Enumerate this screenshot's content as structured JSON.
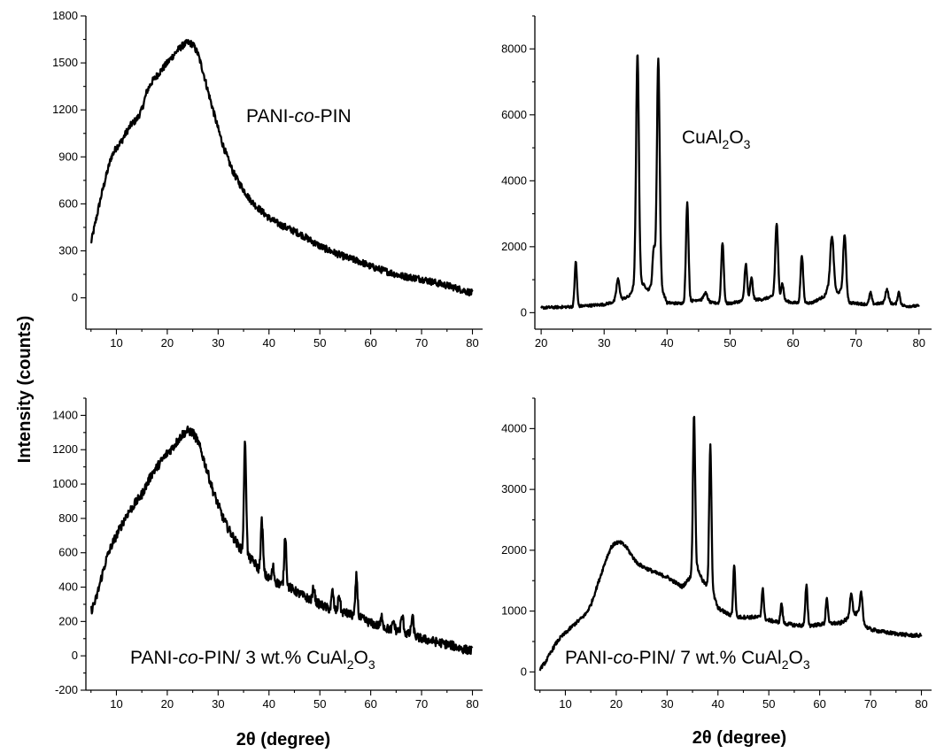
{
  "figure": {
    "ylabel": "Intensity (counts)",
    "xlabel_left": "2θ (degree)",
    "xlabel_right": "2θ (degree)"
  },
  "chart_data": [
    {
      "type": "line",
      "label": {
        "parts": [
          {
            "t": "PANI-"
          },
          {
            "t": "co",
            "style": "italic"
          },
          {
            "t": "-PIN"
          }
        ]
      },
      "xlim": [
        4,
        82
      ],
      "ylim": [
        -200,
        1800
      ],
      "xticks": [
        10,
        20,
        30,
        40,
        50,
        60,
        70,
        80
      ],
      "yticks": [
        0,
        300,
        600,
        900,
        1200,
        1500,
        1800
      ],
      "noise": 22,
      "points": [
        [
          5,
          350
        ],
        [
          6,
          500
        ],
        [
          7,
          650
        ],
        [
          8,
          780
        ],
        [
          9,
          900
        ],
        [
          10,
          960
        ],
        [
          11,
          1000
        ],
        [
          12,
          1060
        ],
        [
          13,
          1110
        ],
        [
          14,
          1140
        ],
        [
          15,
          1200
        ],
        [
          16,
          1320
        ],
        [
          17,
          1380
        ],
        [
          18,
          1420
        ],
        [
          19,
          1460
        ],
        [
          20,
          1500
        ],
        [
          21,
          1540
        ],
        [
          22,
          1580
        ],
        [
          23,
          1610
        ],
        [
          24,
          1630
        ],
        [
          25,
          1620
        ],
        [
          26,
          1560
        ],
        [
          27,
          1450
        ],
        [
          28,
          1320
        ],
        [
          29,
          1200
        ],
        [
          30,
          1080
        ],
        [
          31,
          970
        ],
        [
          32,
          880
        ],
        [
          33,
          800
        ],
        [
          34,
          740
        ],
        [
          35,
          690
        ],
        [
          36,
          640
        ],
        [
          37,
          600
        ],
        [
          38,
          570
        ],
        [
          40,
          510
        ],
        [
          42,
          470
        ],
        [
          44,
          440
        ],
        [
          46,
          410
        ],
        [
          48,
          370
        ],
        [
          50,
          330
        ],
        [
          52,
          300
        ],
        [
          55,
          260
        ],
        [
          58,
          230
        ],
        [
          60,
          200
        ],
        [
          63,
          170
        ],
        [
          66,
          140
        ],
        [
          70,
          120
        ],
        [
          73,
          95
        ],
        [
          76,
          70
        ],
        [
          78,
          50
        ],
        [
          80,
          30
        ]
      ],
      "peaks": []
    },
    {
      "type": "line",
      "label": {
        "parts": [
          {
            "t": "CuAl"
          },
          {
            "t": "2",
            "style": "sub"
          },
          {
            "t": "O"
          },
          {
            "t": "3",
            "style": "sub"
          }
        ]
      },
      "xlim": [
        19,
        82
      ],
      "ylim": [
        -500,
        9000
      ],
      "xticks": [
        20,
        30,
        40,
        50,
        60,
        70,
        80
      ],
      "yticks": [
        0,
        2000,
        4000,
        6000,
        8000
      ],
      "noise": 40,
      "points": [
        [
          20,
          150
        ],
        [
          25,
          180
        ],
        [
          30,
          250
        ],
        [
          32,
          350
        ],
        [
          34,
          500
        ],
        [
          35,
          900
        ],
        [
          36,
          900
        ],
        [
          37,
          700
        ],
        [
          38,
          900
        ],
        [
          39,
          800
        ],
        [
          40,
          300
        ],
        [
          42,
          280
        ],
        [
          45,
          400
        ],
        [
          47,
          300
        ],
        [
          50,
          280
        ],
        [
          53,
          400
        ],
        [
          55,
          400
        ],
        [
          57,
          500
        ],
        [
          58,
          400
        ],
        [
          60,
          300
        ],
        [
          63,
          300
        ],
        [
          65,
          500
        ],
        [
          66,
          1000
        ],
        [
          67,
          600
        ],
        [
          68,
          700
        ],
        [
          69,
          300
        ],
        [
          72,
          250
        ],
        [
          75,
          300
        ],
        [
          78,
          200
        ],
        [
          80,
          200
        ]
      ],
      "peaks": [
        [
          25.5,
          1350,
          0.18
        ],
        [
          32.2,
          650,
          0.25
        ],
        [
          35.3,
          7000,
          0.22
        ],
        [
          37.9,
          1100,
          0.2
        ],
        [
          38.6,
          6850,
          0.22
        ],
        [
          43.2,
          3000,
          0.2
        ],
        [
          46.1,
          250,
          0.3
        ],
        [
          48.8,
          1850,
          0.2
        ],
        [
          52.5,
          1100,
          0.2
        ],
        [
          53.4,
          650,
          0.2
        ],
        [
          57.4,
          2250,
          0.22
        ],
        [
          58.3,
          500,
          0.2
        ],
        [
          61.4,
          1450,
          0.2
        ],
        [
          66.2,
          1400,
          0.25
        ],
        [
          68.2,
          1750,
          0.22
        ],
        [
          72.3,
          350,
          0.2
        ],
        [
          74.9,
          400,
          0.25
        ],
        [
          76.8,
          380,
          0.2
        ]
      ]
    },
    {
      "type": "line",
      "label": {
        "parts": [
          {
            "t": "PANI-"
          },
          {
            "t": "co",
            "style": "italic"
          },
          {
            "t": "-PIN/ 3 wt.% CuAl"
          },
          {
            "t": "2",
            "style": "sub"
          },
          {
            "t": "O"
          },
          {
            "t": "3",
            "style": "sub"
          }
        ]
      },
      "xlim": [
        4,
        82
      ],
      "ylim": [
        -200,
        1500
      ],
      "xticks": [
        10,
        20,
        30,
        40,
        50,
        60,
        70,
        80
      ],
      "yticks": [
        -200,
        0,
        200,
        400,
        600,
        800,
        1000,
        1200,
        1400
      ],
      "noise": 26,
      "points": [
        [
          5,
          260
        ],
        [
          6,
          330
        ],
        [
          7,
          450
        ],
        [
          8,
          560
        ],
        [
          9,
          640
        ],
        [
          10,
          700
        ],
        [
          11,
          760
        ],
        [
          12,
          820
        ],
        [
          13,
          860
        ],
        [
          14,
          900
        ],
        [
          15,
          940
        ],
        [
          16,
          1000
        ],
        [
          17,
          1060
        ],
        [
          18,
          1100
        ],
        [
          19,
          1140
        ],
        [
          20,
          1180
        ],
        [
          21,
          1210
        ],
        [
          22,
          1250
        ],
        [
          23,
          1290
        ],
        [
          24,
          1310
        ],
        [
          25,
          1300
        ],
        [
          26,
          1250
        ],
        [
          27,
          1160
        ],
        [
          28,
          1060
        ],
        [
          29,
          960
        ],
        [
          30,
          880
        ],
        [
          31,
          800
        ],
        [
          32,
          740
        ],
        [
          33,
          690
        ],
        [
          34,
          640
        ],
        [
          35,
          600
        ],
        [
          36,
          570
        ],
        [
          37,
          550
        ],
        [
          38,
          500
        ],
        [
          40,
          450
        ],
        [
          42,
          420
        ],
        [
          44,
          400
        ],
        [
          46,
          360
        ],
        [
          48,
          330
        ],
        [
          50,
          300
        ],
        [
          52,
          270
        ],
        [
          55,
          250
        ],
        [
          58,
          220
        ],
        [
          60,
          190
        ],
        [
          63,
          160
        ],
        [
          66,
          140
        ],
        [
          68,
          120
        ],
        [
          70,
          100
        ],
        [
          73,
          80
        ],
        [
          76,
          60
        ],
        [
          78,
          40
        ],
        [
          80,
          30
        ]
      ],
      "peaks": [
        [
          35.3,
          650,
          0.22
        ],
        [
          38.6,
          300,
          0.22
        ],
        [
          40.8,
          80,
          0.2
        ],
        [
          43.2,
          300,
          0.2
        ],
        [
          48.8,
          80,
          0.2
        ],
        [
          52.5,
          110,
          0.2
        ],
        [
          53.8,
          100,
          0.2
        ],
        [
          57.2,
          240,
          0.2
        ],
        [
          62.2,
          60,
          0.2
        ],
        [
          64.5,
          50,
          0.2
        ],
        [
          66.2,
          90,
          0.25
        ],
        [
          68.2,
          110,
          0.22
        ]
      ]
    },
    {
      "type": "line",
      "label": {
        "parts": [
          {
            "t": "PANI-"
          },
          {
            "t": "co",
            "style": "italic"
          },
          {
            "t": "-PIN/ 7 wt.% CuAl"
          },
          {
            "t": "2",
            "style": "sub"
          },
          {
            "t": "O"
          },
          {
            "t": "3",
            "style": "sub"
          }
        ]
      },
      "xlim": [
        4,
        82
      ],
      "ylim": [
        -300,
        4500
      ],
      "xticks": [
        10,
        20,
        30,
        40,
        50,
        60,
        70,
        80
      ],
      "yticks": [
        0,
        1000,
        2000,
        3000,
        4000
      ],
      "noise": 30,
      "points": [
        [
          5,
          50
        ],
        [
          6,
          150
        ],
        [
          7,
          300
        ],
        [
          8,
          450
        ],
        [
          9,
          560
        ],
        [
          10,
          640
        ],
        [
          11,
          720
        ],
        [
          12,
          800
        ],
        [
          13,
          870
        ],
        [
          14,
          950
        ],
        [
          15,
          1100
        ],
        [
          16,
          1350
        ],
        [
          17,
          1600
        ],
        [
          18,
          1850
        ],
        [
          19,
          2050
        ],
        [
          20,
          2130
        ],
        [
          21,
          2120
        ],
        [
          22,
          2050
        ],
        [
          23,
          1920
        ],
        [
          24,
          1800
        ],
        [
          25,
          1740
        ],
        [
          26,
          1700
        ],
        [
          28,
          1620
        ],
        [
          30,
          1560
        ],
        [
          32,
          1450
        ],
        [
          33,
          1400
        ],
        [
          34,
          1500
        ],
        [
          35,
          1600
        ],
        [
          36,
          1700
        ],
        [
          37,
          1500
        ],
        [
          38,
          1400
        ],
        [
          39,
          1300
        ],
        [
          40,
          1050
        ],
        [
          42,
          950
        ],
        [
          44,
          900
        ],
        [
          46,
          900
        ],
        [
          48,
          900
        ],
        [
          50,
          850
        ],
        [
          53,
          800
        ],
        [
          55,
          770
        ],
        [
          58,
          760
        ],
        [
          60,
          780
        ],
        [
          62,
          800
        ],
        [
          64,
          800
        ],
        [
          66,
          900
        ],
        [
          68,
          1000
        ],
        [
          69,
          750
        ],
        [
          70,
          700
        ],
        [
          73,
          650
        ],
        [
          76,
          620
        ],
        [
          78,
          600
        ],
        [
          80,
          600
        ]
      ],
      "peaks": [
        [
          35.3,
          2600,
          0.22
        ],
        [
          38.5,
          2400,
          0.22
        ],
        [
          43.2,
          850,
          0.2
        ],
        [
          48.8,
          500,
          0.2
        ],
        [
          52.5,
          320,
          0.2
        ],
        [
          57.4,
          650,
          0.22
        ],
        [
          61.4,
          430,
          0.2
        ],
        [
          66.2,
          400,
          0.25
        ],
        [
          68.2,
          350,
          0.22
        ]
      ]
    }
  ]
}
